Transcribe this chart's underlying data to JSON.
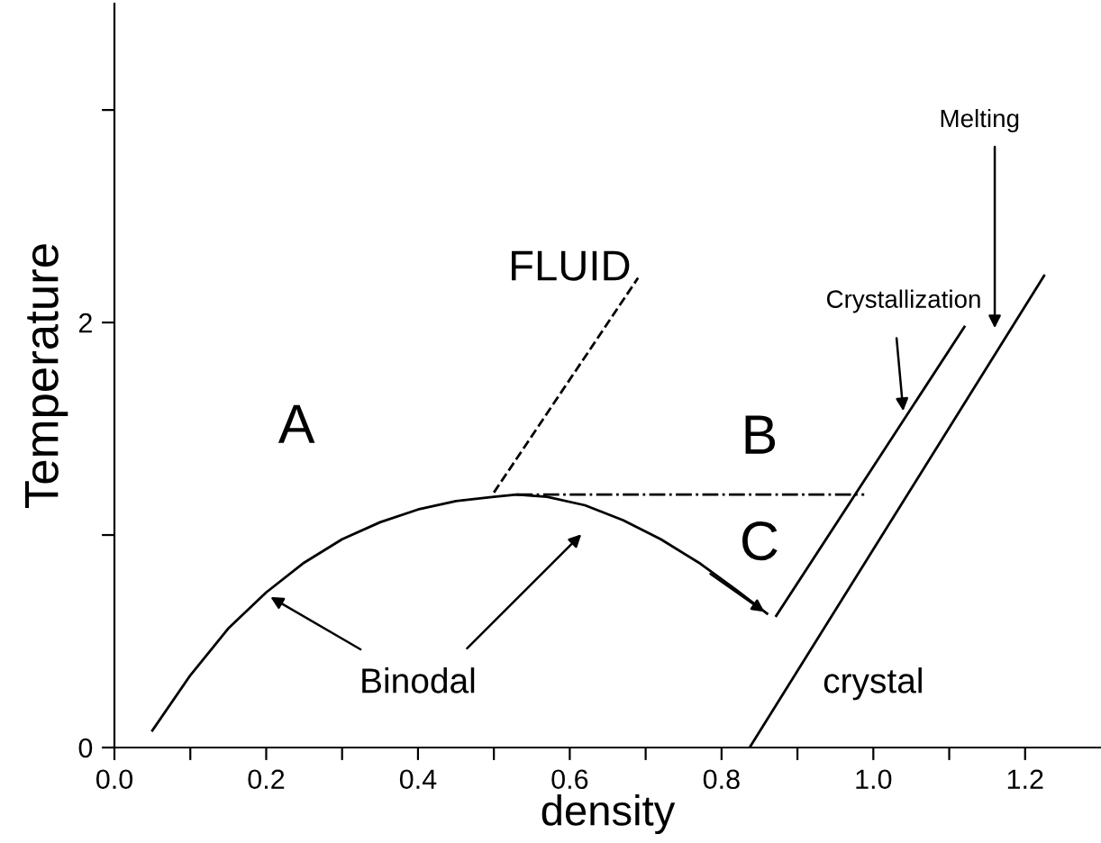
{
  "chart_data": {
    "type": "line",
    "xlabel": "density",
    "ylabel": "Temperature",
    "xlim": [
      0,
      1.3
    ],
    "ylim": [
      0,
      3.5
    ],
    "xticks": [
      {
        "value": 0.0,
        "label": "0.0"
      },
      {
        "value": 0.1,
        "label": null
      },
      {
        "value": 0.2,
        "label": "0.2"
      },
      {
        "value": 0.3,
        "label": null
      },
      {
        "value": 0.4,
        "label": "0.4"
      },
      {
        "value": 0.5,
        "label": null
      },
      {
        "value": 0.6,
        "label": "0.6"
      },
      {
        "value": 0.7,
        "label": null
      },
      {
        "value": 0.8,
        "label": "0.8"
      },
      {
        "value": 0.9,
        "label": null
      },
      {
        "value": 1.0,
        "label": "1.0"
      },
      {
        "value": 1.1,
        "label": null
      },
      {
        "value": 1.2,
        "label": "1.2"
      }
    ],
    "yticks": [
      0,
      {
        "value": 1,
        "label": null
      },
      2,
      {
        "value": 3,
        "label": null
      }
    ],
    "grid": false,
    "legend": false,
    "marker": "none",
    "series": [
      {
        "color": "#000000",
        "line_style": "solid",
        "x": [
          0.05,
          0.1,
          0.15,
          0.2,
          0.25,
          0.3,
          0.35,
          0.4,
          0.45,
          0.5,
          0.53,
          0.57,
          0.62,
          0.67,
          0.72,
          0.77,
          0.82,
          0.86
        ],
        "values": [
          0.08,
          0.34,
          0.56,
          0.73,
          0.87,
          0.98,
          1.06,
          1.12,
          1.16,
          1.18,
          1.19,
          1.18,
          1.14,
          1.07,
          0.98,
          0.87,
          0.74,
          0.63
        ]
      },
      {
        "color": "#000000",
        "line_style": "solid",
        "x": [
          0.872,
          1.12
        ],
        "values": [
          0.62,
          1.98
        ]
      },
      {
        "color": "#000000",
        "line_style": "solid",
        "x": [
          0.837,
          1.225
        ],
        "values": [
          0.0,
          2.22
        ]
      },
      {
        "color": "#000000",
        "line_style": "dashed",
        "x": [
          0.5,
          0.69
        ],
        "values": [
          1.2,
          2.21
        ]
      },
      {
        "color": "#000000",
        "line_style": "dashdot",
        "x": [
          0.53,
          0.988
        ],
        "values": [
          1.19,
          1.19
        ]
      }
    ],
    "annotations": [
      "A",
      "FLUID",
      "B",
      "C",
      "crystal",
      "Crystallization",
      "Melting",
      "Binodal"
    ]
  }
}
